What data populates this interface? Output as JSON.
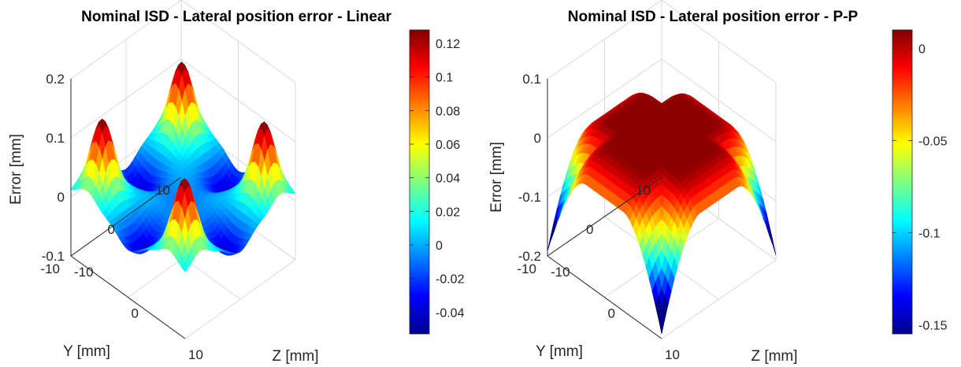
{
  "chart_data": [
    {
      "type": "surface3d",
      "title": "Nominal ISD - Lateral position error - Linear",
      "xlabel": "Z [mm]",
      "ylabel": "Y [mm]",
      "zlabel": "Error [mm]",
      "xlim": [
        -10,
        10
      ],
      "ylim": [
        -10,
        10
      ],
      "zlim": [
        -0.1,
        0.2
      ],
      "x_ticks": [
        "-10",
        "0",
        "10"
      ],
      "y_ticks": [
        "-10",
        "0",
        "10"
      ],
      "z_ticks": [
        "-0.1",
        "0",
        "0.1",
        "0.2"
      ],
      "colormap": "jet",
      "color_range": [
        -0.053,
        0.128
      ],
      "colorbar_ticks": [
        "-0.04",
        "-0.02",
        "0",
        "0.02",
        "0.04",
        "0.06",
        "0.08",
        "0.1",
        "0.12"
      ],
      "surface": {
        "description": "four peaks near corners (~0.125), central dip (~-0.04)",
        "peak_value": 0.125,
        "center_value": 0.01,
        "min_value": -0.053
      },
      "grid": true
    },
    {
      "type": "surface3d",
      "title": "Nominal ISD - Lateral position error - P-P",
      "xlabel": "Z [mm]",
      "ylabel": "Y [mm]",
      "zlabel": "Error [mm]",
      "xlim": [
        -10,
        10
      ],
      "ylim": [
        -10,
        10
      ],
      "zlim": [
        -0.2,
        0.1
      ],
      "x_ticks": [
        "-10",
        "0",
        "10"
      ],
      "y_ticks": [
        "-10",
        "0",
        "10"
      ],
      "z_ticks": [
        "-0.2",
        "-0.1",
        "0",
        "0.1"
      ],
      "colormap": "jet",
      "color_range": [
        -0.155,
        0.01
      ],
      "colorbar_ticks": [
        "-0.15",
        "-0.1",
        "-0.05",
        "0"
      ],
      "surface": {
        "description": "flat plateau near 0, corners dropping to ~-0.15",
        "plateau_value": 0.005,
        "corner_value": -0.155
      },
      "grid": true
    }
  ]
}
